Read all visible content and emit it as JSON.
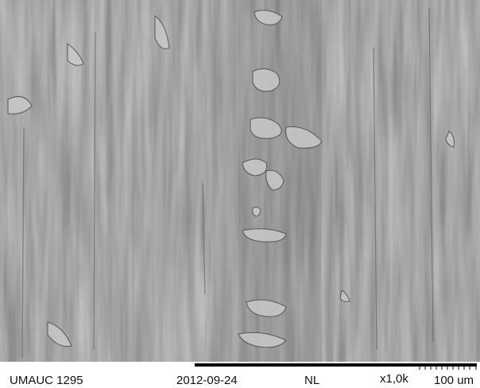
{
  "info_bar": {
    "sample": "UMAUC 1295",
    "date": "2012-09-24",
    "mode": "NL",
    "magnification": "x1,0k",
    "scale": "100 um"
  }
}
